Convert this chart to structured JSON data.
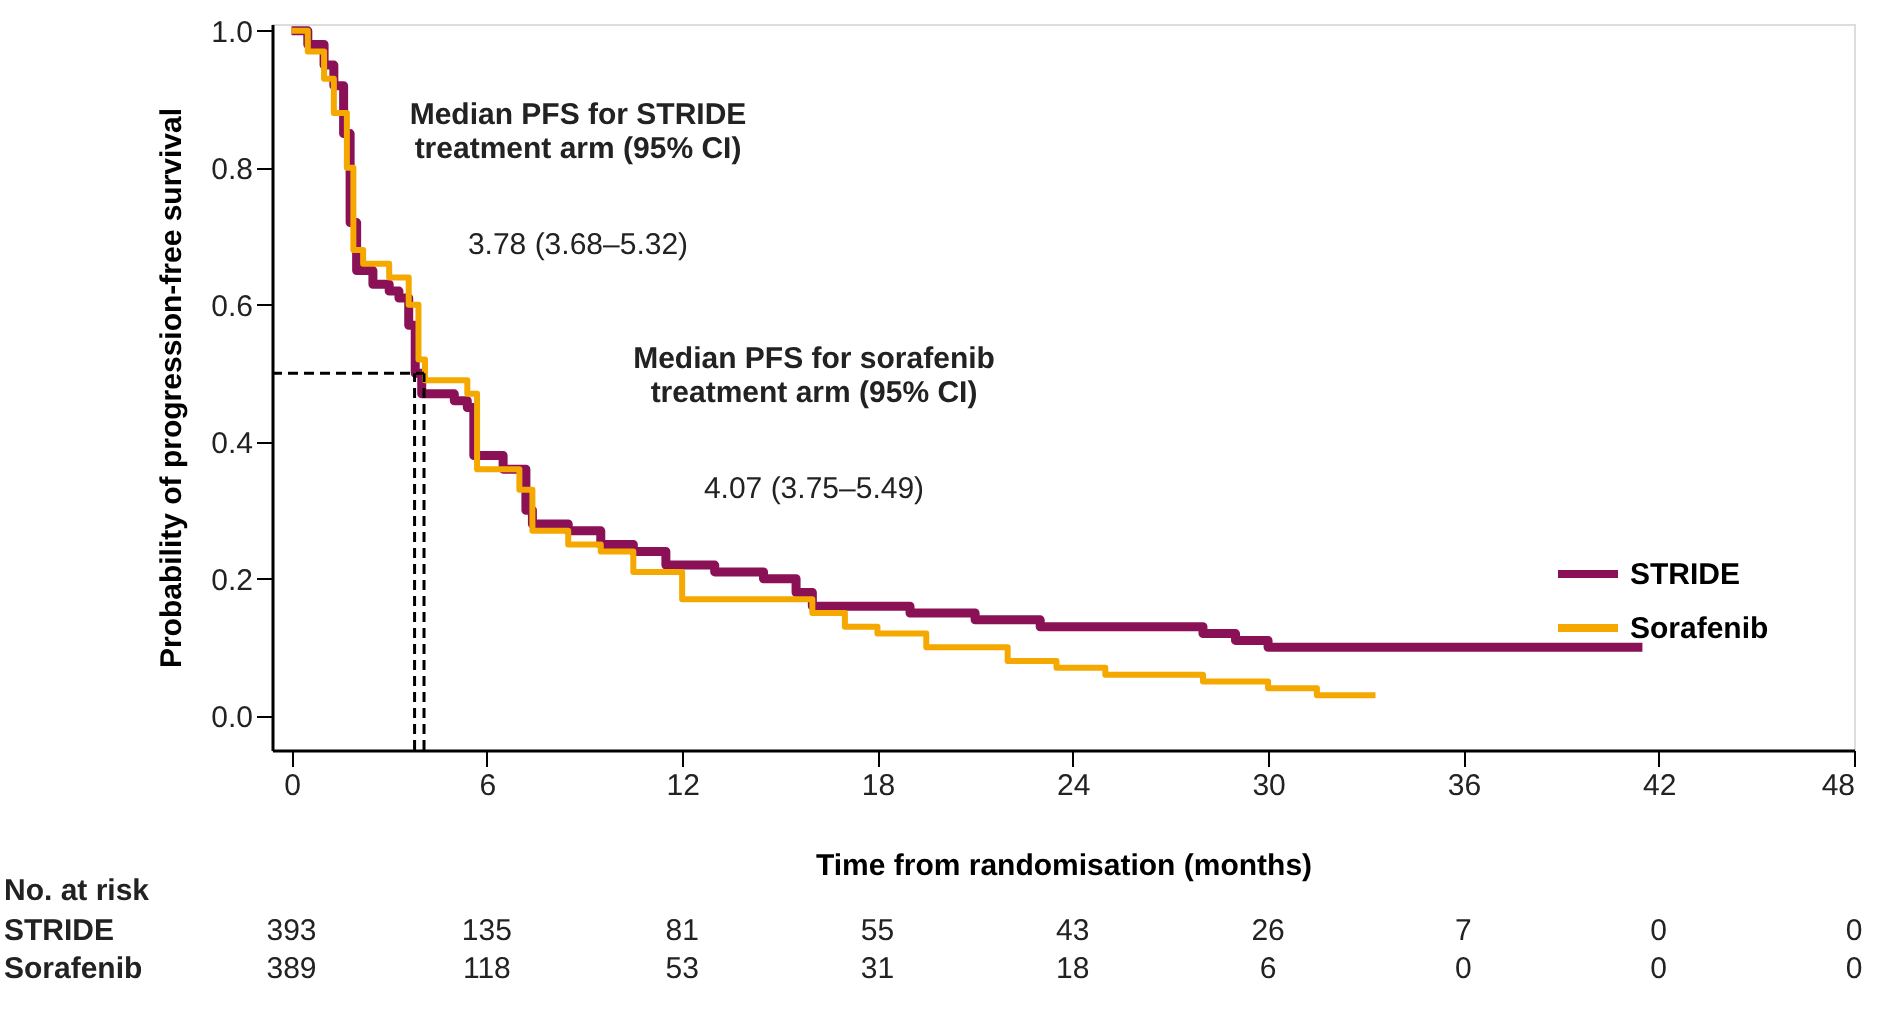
{
  "chart_data": {
    "type": "step",
    "xlabel": "Time from randomisation (months)",
    "ylabel": "Probability of progression-free survival",
    "xlim": [
      -0.6,
      48
    ],
    "ylim": [
      -0.05,
      1.01
    ],
    "xticks": [
      0,
      6,
      12,
      18,
      24,
      30,
      36,
      42,
      48
    ],
    "yticks": [
      {
        "value": 0,
        "label": "0.0"
      },
      0.2,
      0.4,
      0.6,
      0.8,
      {
        "value": 1,
        "label": "1.0"
      }
    ],
    "grid": false,
    "legend": "right",
    "line_style": "solid",
    "marker": "none",
    "series": [
      {
        "name": "STRIDE",
        "color": "#8b1157",
        "x": [
          0,
          0.5,
          1,
          1.3,
          1.6,
          1.8,
          2.0,
          2.5,
          3.0,
          3.3,
          3.6,
          3.8,
          4.0,
          5.0,
          5.4,
          5.6,
          6.5,
          7.2,
          7.4,
          8.5,
          9.5,
          10.5,
          11.5,
          13,
          14.5,
          15.5,
          16,
          19,
          21,
          23,
          28,
          29,
          30,
          41.5
        ],
        "values": [
          1.0,
          0.98,
          0.95,
          0.92,
          0.85,
          0.72,
          0.65,
          0.63,
          0.62,
          0.61,
          0.57,
          0.5,
          0.47,
          0.46,
          0.45,
          0.38,
          0.36,
          0.3,
          0.28,
          0.27,
          0.25,
          0.24,
          0.22,
          0.21,
          0.2,
          0.18,
          0.16,
          0.15,
          0.14,
          0.13,
          0.12,
          0.11,
          0.1,
          0.1
        ]
      },
      {
        "name": "Sorafenib",
        "color": "#f5a800",
        "x": [
          0,
          0.5,
          1,
          1.3,
          1.7,
          1.9,
          2.2,
          3.0,
          3.6,
          3.9,
          4.1,
          5.4,
          5.7,
          7.0,
          7.4,
          8.5,
          9.5,
          10.5,
          12,
          16,
          17,
          18,
          19.5,
          22,
          23.5,
          25,
          28,
          30,
          31.5,
          33.3
        ],
        "values": [
          1.0,
          0.97,
          0.93,
          0.88,
          0.8,
          0.68,
          0.66,
          0.64,
          0.6,
          0.52,
          0.49,
          0.47,
          0.36,
          0.33,
          0.27,
          0.25,
          0.24,
          0.21,
          0.17,
          0.15,
          0.13,
          0.12,
          0.1,
          0.08,
          0.07,
          0.06,
          0.05,
          0.04,
          0.03,
          0.03
        ]
      }
    ],
    "ref_lines": [
      {
        "axis": "y",
        "value": 0.5,
        "line_style": "dashed",
        "color": "#000000"
      },
      {
        "axis": "x",
        "value": 3.78,
        "line_style": "dashed",
        "color": "#000000"
      },
      {
        "axis": "x",
        "value": 4.07,
        "line_style": "dashed",
        "color": "#000000"
      }
    ],
    "annotations": [
      "Median PFS for STRIDE\ntreatment arm (95% CI)",
      "3.78 (3.68–5.32)",
      "Median PFS for sorafenib\ntreatment arm (95% CI)",
      "4.07 (3.75–5.49)",
      "No. at risk",
      "STRIDE",
      "393",
      "135",
      "81",
      "55",
      "43",
      "26",
      "7",
      "0",
      "0",
      "Sorafenib",
      "389",
      "118",
      "53",
      "31",
      "18",
      "6",
      "0",
      "0",
      "0"
    ]
  }
}
